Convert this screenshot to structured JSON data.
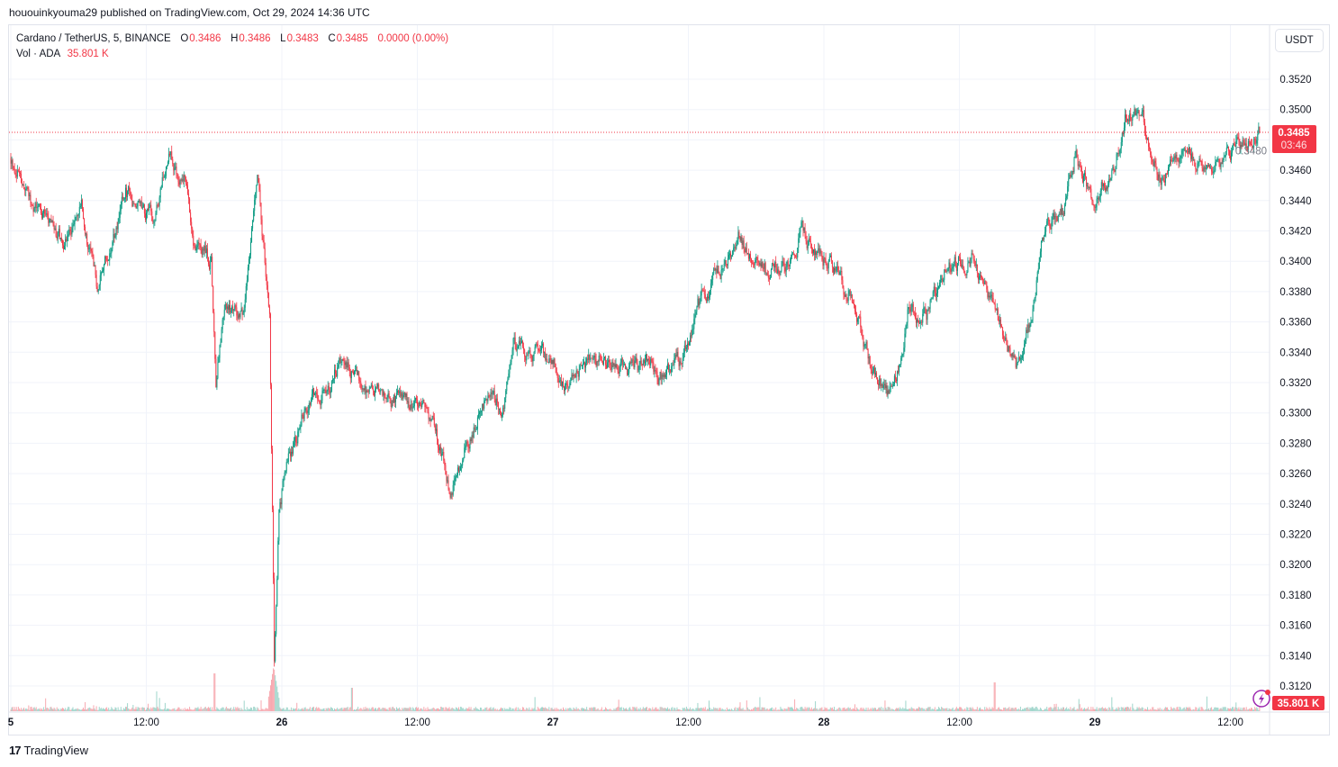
{
  "publish_line": "hououinkyouma29 published on TradingView.com, Oct 29, 2024 14:36 UTC",
  "legend": {
    "symbol": "Cardano / TetherUS, 5, BINANCE",
    "o_label": "O",
    "o": "0.3486",
    "h_label": "H",
    "h": "0.3486",
    "l_label": "L",
    "l": "0.3483",
    "c_label": "C",
    "c": "0.3485",
    "change": "0.0000 (0.00%)",
    "vol_label": "Vol · ADA",
    "vol": "35.801 K"
  },
  "currency_button": "USDT",
  "current_price": {
    "price": "0.3485",
    "countdown": "03:46",
    "volume": "35.801 K"
  },
  "colors": {
    "up": "#089981",
    "down": "#f23645",
    "grid": "#f0f3fa"
  },
  "footer": {
    "brand": "TradingView",
    "logo": "tradingview-logo"
  },
  "chart_data": {
    "type": "candlestick",
    "interval": "5",
    "y_ticks": [
      "0.3520",
      "0.3500",
      "0.3480",
      "0.3460",
      "0.3440",
      "0.3420",
      "0.3400",
      "0.3380",
      "0.3360",
      "0.3340",
      "0.3320",
      "0.3300",
      "0.3280",
      "0.3260",
      "0.3240",
      "0.3220",
      "0.3200",
      "0.3180",
      "0.3160",
      "0.3140",
      "0.3120"
    ],
    "x_ticks": [
      "5",
      "12:00",
      "26",
      "12:00",
      "27",
      "12:00",
      "28",
      "12:00",
      "29",
      "12:00"
    ],
    "ylim": [
      0.311,
      0.3535
    ],
    "x_range": [
      "2024-10-25T00:00",
      "2024-10-29T14:35"
    ],
    "price_path": [
      [
        "2024-10-25T00:00",
        0.3468
      ],
      [
        "2024-10-25T02:15",
        0.3436
      ],
      [
        "2024-10-25T04:35",
        0.3412
      ],
      [
        "2024-10-25T06:15",
        0.3433
      ],
      [
        "2024-10-25T07:40",
        0.3382
      ],
      [
        "2024-10-25T09:25",
        0.3421
      ],
      [
        "2024-10-25T10:10",
        0.3445
      ],
      [
        "2024-10-25T12:35",
        0.3427
      ],
      [
        "2024-10-25T14:00",
        0.3468
      ],
      [
        "2024-10-25T15:25",
        0.3454
      ],
      [
        "2024-10-25T16:10",
        0.3418
      ],
      [
        "2024-10-25T17:45",
        0.34
      ],
      [
        "2024-10-25T18:10",
        0.3323
      ],
      [
        "2024-10-25T19:00",
        0.337
      ],
      [
        "2024-10-25T20:35",
        0.3364
      ],
      [
        "2024-10-25T21:50",
        0.3462
      ],
      [
        "2024-10-25T22:20",
        0.3415
      ],
      [
        "2024-10-25T22:55",
        0.3364
      ],
      [
        "2024-10-25T23:15",
        0.3192
      ],
      [
        "2024-10-25T23:20",
        0.314
      ],
      [
        "2024-10-25T23:45",
        0.324
      ],
      [
        "2024-10-26T00:30",
        0.3264
      ],
      [
        "2024-10-26T02:05",
        0.3305
      ],
      [
        "2024-10-26T03:45",
        0.3317
      ],
      [
        "2024-10-26T05:20",
        0.3332
      ],
      [
        "2024-10-26T08:30",
        0.3311
      ],
      [
        "2024-10-26T11:40",
        0.3305
      ],
      [
        "2024-10-26T13:15",
        0.3299
      ],
      [
        "2024-10-26T14:55",
        0.3252
      ],
      [
        "2024-10-26T16:30",
        0.3281
      ],
      [
        "2024-10-26T18:05",
        0.3311
      ],
      [
        "2024-10-26T19:40",
        0.3305
      ],
      [
        "2024-10-26T20:30",
        0.3347
      ],
      [
        "2024-10-26T22:05",
        0.3335
      ],
      [
        "2024-10-26T23:40",
        0.3338
      ],
      [
        "2024-10-27T01:15",
        0.3317
      ],
      [
        "2024-10-27T03:40",
        0.3335
      ],
      [
        "2024-10-27T06:50",
        0.3329
      ],
      [
        "2024-10-27T08:25",
        0.3338
      ],
      [
        "2024-10-27T09:35",
        0.3323
      ],
      [
        "2024-10-27T11:35",
        0.3338
      ],
      [
        "2024-10-27T13:10",
        0.3376
      ],
      [
        "2024-10-27T14:50",
        0.3394
      ],
      [
        "2024-10-27T16:25",
        0.3415
      ],
      [
        "2024-10-27T18:50",
        0.3394
      ],
      [
        "2024-10-27T20:25",
        0.3397
      ],
      [
        "2024-10-27T22:00",
        0.3418
      ],
      [
        "2024-10-27T23:35",
        0.3406
      ],
      [
        "2024-10-28T01:10",
        0.3394
      ],
      [
        "2024-10-28T02:45",
        0.337
      ],
      [
        "2024-10-28T04:00",
        0.3335
      ],
      [
        "2024-10-28T05:35",
        0.3311
      ],
      [
        "2024-10-28T06:45",
        0.3329
      ],
      [
        "2024-10-28T07:30",
        0.337
      ],
      [
        "2024-10-28T09:05",
        0.3364
      ],
      [
        "2024-10-28T10:45",
        0.3397
      ],
      [
        "2024-10-28T13:05",
        0.34
      ],
      [
        "2024-10-28T14:45",
        0.3376
      ],
      [
        "2024-10-28T15:55",
        0.3347
      ],
      [
        "2024-10-28T17:05",
        0.3329
      ],
      [
        "2024-10-28T18:20",
        0.3364
      ],
      [
        "2024-10-28T19:30",
        0.3418
      ],
      [
        "2024-10-28T21:05",
        0.343
      ],
      [
        "2024-10-28T22:15",
        0.3471
      ],
      [
        "2024-10-28T23:50",
        0.3442
      ],
      [
        "2024-10-29T01:50",
        0.3465
      ],
      [
        "2024-10-29T02:40",
        0.3495
      ],
      [
        "2024-10-29T04:15",
        0.3495
      ],
      [
        "2024-10-29T05:50",
        0.3454
      ],
      [
        "2024-10-29T08:15",
        0.3477
      ],
      [
        "2024-10-29T09:25",
        0.3459
      ],
      [
        "2024-10-29T11:25",
        0.3471
      ],
      [
        "2024-10-29T13:00",
        0.3477
      ],
      [
        "2024-10-29T14:35",
        0.3485
      ]
    ]
  }
}
